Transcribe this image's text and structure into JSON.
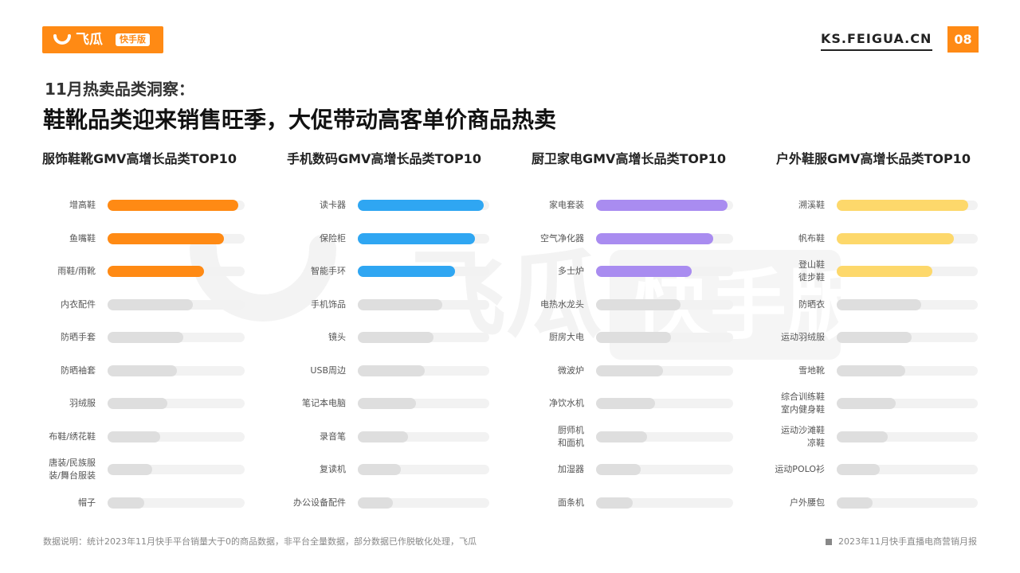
{
  "header": {
    "brand": "飞瓜",
    "brand_badge": "快手版",
    "site_url": "KS.FEIGUA.CN",
    "page_number": "08"
  },
  "subtitle": "11月热卖品类洞察：",
  "title": "鞋靴品类迎来销售旺季，大促带动高客单价商品热卖",
  "watermark": {
    "brand": "飞瓜",
    "badge": "快手版"
  },
  "chart_data": [
    {
      "type": "bar",
      "title": "服饰鞋靴GMV高增长品类TOP10",
      "color": "#ff8a14",
      "highlight_count": 3,
      "categories": [
        "增高鞋",
        "鱼嘴鞋",
        "雨鞋/雨靴",
        "内衣配件",
        "防晒手套",
        "防晒袖套",
        "羽绒服",
        "布鞋/绣花鞋",
        "唐装/民族服装/舞台服装",
        "帽子"
      ],
      "values": [
        100,
        89,
        74,
        65,
        58,
        53,
        46,
        40,
        34,
        28
      ],
      "xlim": [
        0,
        105
      ]
    },
    {
      "type": "bar",
      "title": "手机数码GMV高增长品类TOP10",
      "color": "#2fa6f2",
      "highlight_count": 3,
      "categories": [
        "读卡器",
        "保险柜",
        "智能手环",
        "手机饰品",
        "镜头",
        "USB周边",
        "笔记本电脑",
        "录音笔",
        "复读机",
        "办公设备配件"
      ],
      "values": [
        100,
        93,
        77,
        67,
        60,
        53,
        46,
        40,
        34,
        28
      ],
      "xlim": [
        0,
        105
      ]
    },
    {
      "type": "bar",
      "title": "厨卫家电GMV高增长品类TOP10",
      "color": "#a98cf0",
      "highlight_count": 3,
      "categories": [
        "家电套装",
        "空气净化器",
        "多士炉",
        "电热水龙头",
        "厨房大电",
        "微波炉",
        "净饮水机",
        "厨师机和面机",
        "加湿器",
        "面条机"
      ],
      "values": [
        100,
        89,
        73,
        64,
        57,
        51,
        45,
        39,
        34,
        28
      ],
      "xlim": [
        0,
        105
      ]
    },
    {
      "type": "bar",
      "title": "户外鞋服GMV高增长品类TOP10",
      "color": "#fdd86b",
      "highlight_count": 3,
      "categories": [
        "溯溪鞋",
        "帆布鞋",
        "登山鞋徒步鞋",
        "防晒衣",
        "运动羽绒服",
        "雪地靴",
        "综合训练鞋室内健身鞋",
        "运动沙滩鞋凉鞋",
        "运动POLO衫",
        "户外腰包"
      ],
      "values": [
        100,
        89,
        73,
        64,
        57,
        52,
        45,
        39,
        33,
        27
      ],
      "xlim": [
        0,
        105
      ]
    }
  ],
  "footnote": "数据说明：统计2023年11月快手平台销量大于0的商品数据，非平台全量数据，部分数据已作脱敏化处理，飞瓜",
  "report_name": "2023年11月快手直播电商营销月报"
}
